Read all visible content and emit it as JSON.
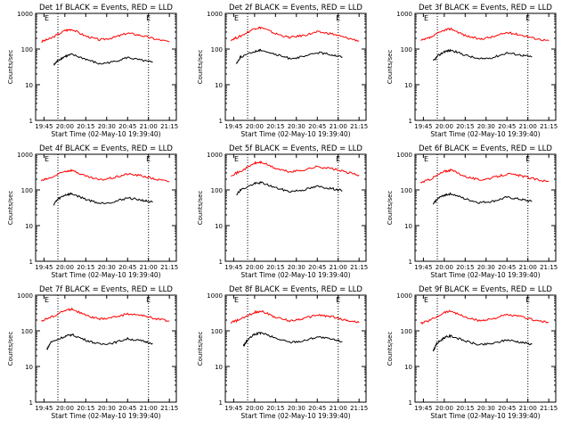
{
  "figure": {
    "colors": {
      "events": "#000000",
      "lld": "#ff0000",
      "axis": "#000000",
      "background": "#ffffff"
    }
  },
  "chart_data": [
    {
      "type": "line",
      "title": "Det 1f BLACK = Events, RED = LLD",
      "xlabel": "Start Time (02-May-10 19:39:40)",
      "ylabel": "Counts/sec",
      "yscale": "log",
      "ylim": [
        1,
        1000
      ],
      "x_ticks": [
        "19:45",
        "20:00",
        "20:15",
        "20:30",
        "20:45",
        "21:00",
        "21:15"
      ],
      "y_ticks": [
        "1",
        "10",
        "100",
        "1000"
      ],
      "markers": [
        {
          "time": "19:47",
          "label": "E"
        },
        {
          "time": "21:00",
          "label": "E"
        }
      ],
      "dotted_lines": [
        "19:55",
        "21:00"
      ],
      "series": [
        {
          "name": "LLD",
          "color": "#ff0000",
          "t": [
            "19:43",
            "19:50",
            "20:00",
            "20:05",
            "20:15",
            "20:25",
            "20:35",
            "20:45",
            "20:55",
            "21:05",
            "21:15"
          ],
          "values": [
            160,
            200,
            330,
            360,
            230,
            180,
            210,
            280,
            240,
            190,
            160
          ]
        },
        {
          "name": "Events",
          "color": "#000000",
          "t": [
            "19:52",
            "19:55",
            "20:00",
            "20:05",
            "20:15",
            "20:25",
            "20:35",
            "20:45",
            "20:55",
            "21:03"
          ],
          "values": [
            35,
            48,
            62,
            70,
            52,
            38,
            44,
            58,
            48,
            42
          ]
        }
      ]
    },
    {
      "type": "line",
      "title": "Det 2f BLACK = Events, RED = LLD",
      "xlabel": "Start Time (02-May-10 19:39:40)",
      "ylabel": "Counts/sec",
      "yscale": "log",
      "ylim": [
        1,
        1000
      ],
      "x_ticks": [
        "19:45",
        "20:00",
        "20:15",
        "20:30",
        "20:45",
        "21:00",
        "21:15"
      ],
      "y_ticks": [
        "1",
        "10",
        "100",
        "1000"
      ],
      "markers": [
        {
          "time": "19:47",
          "label": "E"
        },
        {
          "time": "21:00",
          "label": "E"
        }
      ],
      "dotted_lines": [
        "19:55",
        "21:00"
      ],
      "series": [
        {
          "name": "LLD",
          "color": "#ff0000",
          "t": [
            "19:43",
            "19:50",
            "20:00",
            "20:05",
            "20:15",
            "20:25",
            "20:35",
            "20:45",
            "20:55",
            "21:05",
            "21:15"
          ],
          "values": [
            180,
            230,
            380,
            400,
            270,
            210,
            240,
            300,
            270,
            210,
            170
          ]
        },
        {
          "name": "Events",
          "color": "#000000",
          "t": [
            "19:47",
            "19:50",
            "20:00",
            "20:05",
            "20:15",
            "20:25",
            "20:35",
            "20:45",
            "20:55",
            "21:03"
          ],
          "values": [
            40,
            60,
            85,
            95,
            70,
            55,
            60,
            80,
            70,
            60
          ]
        }
      ]
    },
    {
      "type": "line",
      "title": "Det 3f BLACK = Events, RED = LLD",
      "xlabel": "Start Time (02-May-10 19:39:40)",
      "ylabel": "Counts/sec",
      "yscale": "log",
      "ylim": [
        1,
        1000
      ],
      "x_ticks": [
        "19:45",
        "20:00",
        "20:15",
        "20:30",
        "20:45",
        "21:00",
        "21:15"
      ],
      "y_ticks": [
        "1",
        "10",
        "100",
        "1000"
      ],
      "markers": [
        {
          "time": "19:47",
          "label": "E"
        },
        {
          "time": "21:00",
          "label": "E"
        }
      ],
      "dotted_lines": [
        "19:55",
        "21:00"
      ],
      "series": [
        {
          "name": "LLD",
          "color": "#ff0000",
          "t": [
            "19:43",
            "19:50",
            "20:00",
            "20:05",
            "20:15",
            "20:25",
            "20:35",
            "20:45",
            "20:55",
            "21:05",
            "21:15"
          ],
          "values": [
            170,
            210,
            340,
            370,
            240,
            190,
            220,
            290,
            250,
            200,
            170
          ]
        },
        {
          "name": "Events",
          "color": "#000000",
          "t": [
            "19:52",
            "19:55",
            "20:00",
            "20:05",
            "20:15",
            "20:25",
            "20:35",
            "20:45",
            "20:55",
            "21:03"
          ],
          "values": [
            45,
            62,
            85,
            92,
            68,
            52,
            58,
            78,
            68,
            60
          ]
        }
      ]
    },
    {
      "type": "line",
      "title": "Det 4f BLACK = Events, RED = LLD",
      "xlabel": "Start Time (02-May-10 19:39:40)",
      "ylabel": "Counts/sec",
      "yscale": "log",
      "ylim": [
        1,
        1000
      ],
      "x_ticks": [
        "19:45",
        "20:00",
        "20:15",
        "20:30",
        "20:45",
        "21:00",
        "21:15"
      ],
      "y_ticks": [
        "1",
        "10",
        "100",
        "1000"
      ],
      "markers": [
        {
          "time": "19:47",
          "label": "E"
        },
        {
          "time": "21:00",
          "label": "E"
        }
      ],
      "dotted_lines": [
        "19:55",
        "21:00"
      ],
      "series": [
        {
          "name": "LLD",
          "color": "#ff0000",
          "t": [
            "19:43",
            "19:50",
            "20:00",
            "20:05",
            "20:15",
            "20:25",
            "20:35",
            "20:45",
            "20:55",
            "21:05",
            "21:15"
          ],
          "values": [
            180,
            220,
            330,
            360,
            240,
            190,
            220,
            280,
            250,
            200,
            170
          ]
        },
        {
          "name": "Events",
          "color": "#000000",
          "t": [
            "19:52",
            "19:55",
            "20:00",
            "20:05",
            "20:15",
            "20:25",
            "20:35",
            "20:45",
            "20:55",
            "21:03"
          ],
          "values": [
            40,
            55,
            72,
            78,
            55,
            42,
            46,
            60,
            52,
            45
          ]
        }
      ]
    },
    {
      "type": "line",
      "title": "Det 5f BLACK = Events, RED = LLD",
      "xlabel": "Start Time (02-May-10 19:39:40)",
      "ylabel": "Counts/sec",
      "yscale": "log",
      "ylim": [
        1,
        1000
      ],
      "x_ticks": [
        "19:45",
        "20:00",
        "20:15",
        "20:30",
        "20:45",
        "21:00",
        "21:15"
      ],
      "y_ticks": [
        "1",
        "10",
        "100",
        "1000"
      ],
      "markers": [
        {
          "time": "19:47",
          "label": "E"
        },
        {
          "time": "21:00",
          "label": "E"
        }
      ],
      "dotted_lines": [
        "19:55",
        "21:00"
      ],
      "series": [
        {
          "name": "LLD",
          "color": "#ff0000",
          "t": [
            "19:43",
            "19:50",
            "20:00",
            "20:05",
            "20:15",
            "20:25",
            "20:35",
            "20:45",
            "20:55",
            "21:05",
            "21:15"
          ],
          "values": [
            260,
            330,
            560,
            600,
            400,
            320,
            360,
            450,
            400,
            320,
            260
          ]
        },
        {
          "name": "Events",
          "color": "#000000",
          "t": [
            "19:47",
            "19:50",
            "20:00",
            "20:05",
            "20:15",
            "20:25",
            "20:35",
            "20:45",
            "20:55",
            "21:03"
          ],
          "values": [
            75,
            100,
            150,
            160,
            115,
            90,
            100,
            125,
            110,
            95
          ]
        }
      ]
    },
    {
      "type": "line",
      "title": "Det 6f BLACK = Events, RED = LLD",
      "xlabel": "Start Time (02-May-10 19:39:40)",
      "ylabel": "Counts/sec",
      "yscale": "log",
      "ylim": [
        1,
        1000
      ],
      "x_ticks": [
        "19:45",
        "20:00",
        "20:15",
        "20:30",
        "20:45",
        "21:00",
        "21:15"
      ],
      "y_ticks": [
        "1",
        "10",
        "100",
        "1000"
      ],
      "markers": [
        {
          "time": "19:47",
          "label": "E"
        },
        {
          "time": "21:00",
          "label": "E"
        }
      ],
      "dotted_lines": [
        "19:55",
        "21:00"
      ],
      "series": [
        {
          "name": "LLD",
          "color": "#ff0000",
          "t": [
            "19:43",
            "19:50",
            "20:00",
            "20:05",
            "20:15",
            "20:25",
            "20:35",
            "20:45",
            "20:55",
            "21:05",
            "21:15"
          ],
          "values": [
            160,
            200,
            330,
            360,
            240,
            190,
            220,
            280,
            250,
            200,
            170
          ]
        },
        {
          "name": "Events",
          "color": "#000000",
          "t": [
            "19:52",
            "19:55",
            "20:00",
            "20:05",
            "20:15",
            "20:25",
            "20:35",
            "20:45",
            "20:55",
            "21:03"
          ],
          "values": [
            40,
            56,
            72,
            78,
            56,
            44,
            48,
            62,
            54,
            47
          ]
        }
      ]
    },
    {
      "type": "line",
      "title": "Det 7f BLACK = Events, RED = LLD",
      "xlabel": "Start Time (02-May-10 19:39:40)",
      "ylabel": "Counts/sec",
      "yscale": "log",
      "ylim": [
        1,
        1000
      ],
      "x_ticks": [
        "19:45",
        "20:00",
        "20:15",
        "20:30",
        "20:45",
        "21:00",
        "21:15"
      ],
      "y_ticks": [
        "1",
        "10",
        "100",
        "1000"
      ],
      "markers": [
        {
          "time": "19:47",
          "label": "E"
        },
        {
          "time": "21:00",
          "label": "E"
        }
      ],
      "dotted_lines": [
        "19:55",
        "21:00"
      ],
      "series": [
        {
          "name": "LLD",
          "color": "#ff0000",
          "t": [
            "19:43",
            "19:50",
            "20:00",
            "20:05",
            "20:15",
            "20:25",
            "20:35",
            "20:45",
            "20:55",
            "21:05",
            "21:15"
          ],
          "values": [
            190,
            240,
            370,
            410,
            270,
            210,
            240,
            300,
            270,
            220,
            190
          ]
        },
        {
          "name": "Events",
          "color": "#000000",
          "t": [
            "19:47",
            "19:50",
            "20:00",
            "20:05",
            "20:15",
            "20:25",
            "20:35",
            "20:45",
            "20:55",
            "21:03"
          ],
          "values": [
            30,
            48,
            70,
            78,
            55,
            42,
            46,
            60,
            52,
            45
          ]
        }
      ]
    },
    {
      "type": "line",
      "title": "Det 8f BLACK = Events, RED = LLD",
      "xlabel": "Start Time (02-May-10 19:39:40)",
      "ylabel": "Counts/sec",
      "yscale": "log",
      "ylim": [
        1,
        1000
      ],
      "x_ticks": [
        "19:45",
        "20:00",
        "20:15",
        "20:30",
        "20:45",
        "21:00",
        "21:15"
      ],
      "y_ticks": [
        "1",
        "10",
        "100",
        "1000"
      ],
      "markers": [
        {
          "time": "19:47",
          "label": "E"
        },
        {
          "time": "21:00",
          "label": "E"
        }
      ],
      "dotted_lines": [
        "19:55",
        "21:00"
      ],
      "series": [
        {
          "name": "LLD",
          "color": "#ff0000",
          "t": [
            "19:43",
            "19:50",
            "20:00",
            "20:05",
            "20:15",
            "20:25",
            "20:35",
            "20:45",
            "20:55",
            "21:05",
            "21:15"
          ],
          "values": [
            170,
            210,
            330,
            360,
            240,
            190,
            220,
            280,
            250,
            200,
            170
          ]
        },
        {
          "name": "Events",
          "color": "#000000",
          "t": [
            "19:52",
            "19:55",
            "20:00",
            "20:05",
            "20:15",
            "20:25",
            "20:35",
            "20:45",
            "20:55",
            "21:03"
          ],
          "values": [
            38,
            55,
            80,
            88,
            62,
            48,
            52,
            68,
            58,
            50
          ]
        }
      ]
    },
    {
      "type": "line",
      "title": "Det 9f BLACK = Events, RED = LLD",
      "xlabel": "Start Time (02-May-10 19:39:40)",
      "ylabel": "Counts/sec",
      "yscale": "log",
      "ylim": [
        1,
        1000
      ],
      "x_ticks": [
        "19:45",
        "20:00",
        "20:15",
        "20:30",
        "20:45",
        "21:00",
        "21:15"
      ],
      "y_ticks": [
        "1",
        "10",
        "100",
        "1000"
      ],
      "markers": [
        {
          "time": "19:47",
          "label": "E"
        },
        {
          "time": "21:00",
          "label": "E"
        }
      ],
      "dotted_lines": [
        "19:55",
        "21:00"
      ],
      "series": [
        {
          "name": "LLD",
          "color": "#ff0000",
          "t": [
            "19:43",
            "19:50",
            "20:00",
            "20:05",
            "20:15",
            "20:25",
            "20:35",
            "20:45",
            "20:55",
            "21:05",
            "21:15"
          ],
          "values": [
            160,
            200,
            330,
            360,
            240,
            190,
            220,
            280,
            250,
            200,
            170
          ]
        },
        {
          "name": "Events",
          "color": "#000000",
          "t": [
            "19:52",
            "19:55",
            "20:00",
            "20:05",
            "20:15",
            "20:25",
            "20:35",
            "20:45",
            "20:55",
            "21:03"
          ],
          "values": [
            28,
            45,
            65,
            72,
            52,
            40,
            44,
            56,
            48,
            42
          ]
        }
      ]
    }
  ]
}
